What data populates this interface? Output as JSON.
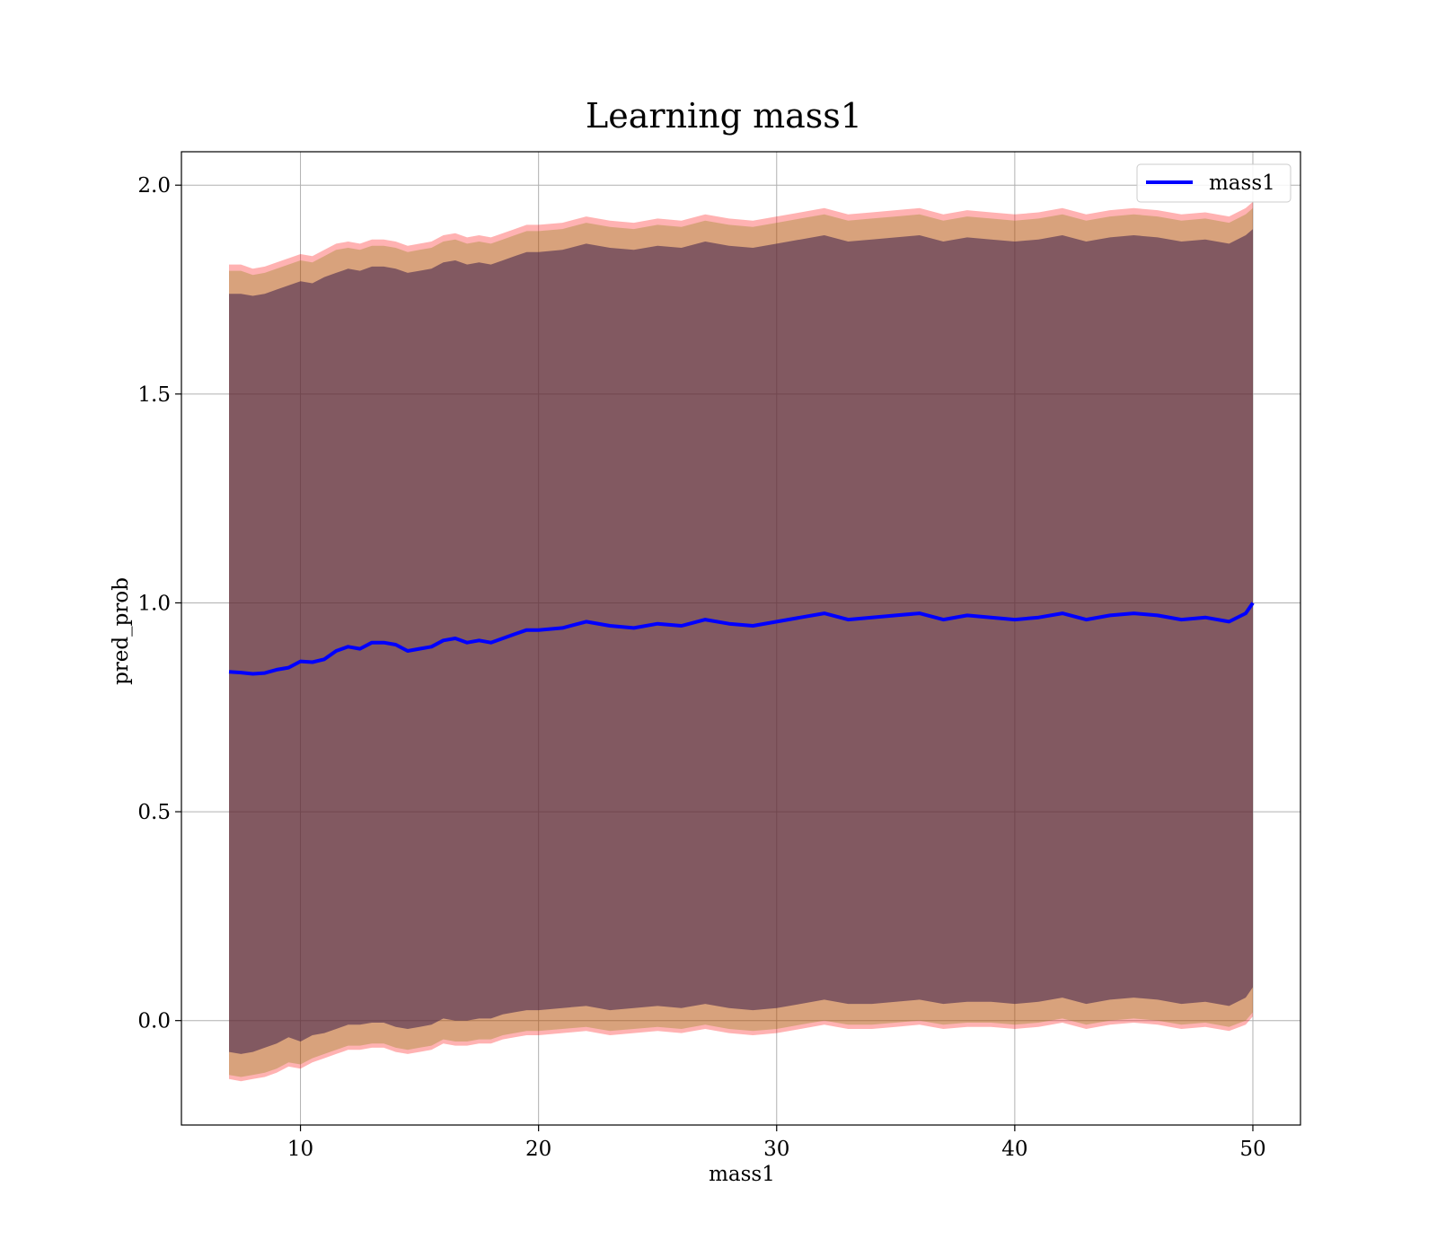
{
  "chart_data": {
    "type": "line",
    "title": "Learning mass1",
    "xlabel": "mass1",
    "ylabel": "pred_prob",
    "xlim": [
      5,
      52
    ],
    "ylim": [
      -0.25,
      2.08
    ],
    "x_ticks": [
      10,
      20,
      30,
      40,
      50
    ],
    "x_tick_labels": [
      "10",
      "20",
      "30",
      "40",
      "50"
    ],
    "y_ticks": [
      0.0,
      0.5,
      1.0,
      1.5,
      2.0
    ],
    "y_tick_labels": [
      "0.0",
      "0.5",
      "1.0",
      "1.5",
      "2.0"
    ],
    "grid": true,
    "legend": {
      "position": "upper right",
      "entries": [
        "mass1"
      ]
    },
    "x": [
      7,
      7.5,
      8,
      8.5,
      9,
      9.5,
      10,
      10.5,
      11,
      11.5,
      12,
      12.5,
      13,
      13.5,
      14,
      14.5,
      15,
      15.5,
      16,
      16.5,
      17,
      17.5,
      18,
      18.5,
      19,
      19.5,
      20,
      21,
      22,
      23,
      24,
      25,
      26,
      27,
      28,
      29,
      30,
      31,
      32,
      33,
      34,
      35,
      36,
      37,
      38,
      39,
      40,
      41,
      42,
      43,
      44,
      45,
      46,
      47,
      48,
      49,
      49.7,
      50
    ],
    "series": [
      {
        "name": "mass1",
        "color": "#0000ff",
        "values": [
          0.835,
          0.833,
          0.83,
          0.832,
          0.84,
          0.845,
          0.86,
          0.858,
          0.865,
          0.885,
          0.895,
          0.89,
          0.905,
          0.905,
          0.9,
          0.885,
          0.89,
          0.895,
          0.91,
          0.915,
          0.905,
          0.91,
          0.905,
          0.915,
          0.925,
          0.935,
          0.935,
          0.94,
          0.955,
          0.945,
          0.94,
          0.95,
          0.945,
          0.96,
          0.95,
          0.945,
          0.955,
          0.965,
          0.975,
          0.96,
          0.965,
          0.97,
          0.975,
          0.96,
          0.97,
          0.965,
          0.96,
          0.965,
          0.975,
          0.96,
          0.97,
          0.975,
          0.97,
          0.96,
          0.965,
          0.955,
          0.975,
          1.0
        ]
      }
    ],
    "bands": [
      {
        "color": "#ff0000",
        "opacity": 0.3,
        "lower": [
          -0.14,
          -0.145,
          -0.14,
          -0.135,
          -0.125,
          -0.11,
          -0.115,
          -0.1,
          -0.09,
          -0.08,
          -0.07,
          -0.07,
          -0.065,
          -0.065,
          -0.075,
          -0.08,
          -0.075,
          -0.07,
          -0.055,
          -0.06,
          -0.06,
          -0.055,
          -0.055,
          -0.045,
          -0.04,
          -0.035,
          -0.035,
          -0.03,
          -0.025,
          -0.035,
          -0.03,
          -0.025,
          -0.03,
          -0.02,
          -0.03,
          -0.035,
          -0.03,
          -0.02,
          -0.01,
          -0.02,
          -0.02,
          -0.015,
          -0.01,
          -0.02,
          -0.015,
          -0.015,
          -0.02,
          -0.015,
          -0.005,
          -0.02,
          -0.01,
          -0.005,
          -0.01,
          -0.02,
          -0.015,
          -0.025,
          -0.01,
          0.01
        ],
        "upper": [
          1.81,
          1.81,
          1.8,
          1.805,
          1.815,
          1.825,
          1.835,
          1.83,
          1.845,
          1.86,
          1.865,
          1.86,
          1.87,
          1.87,
          1.865,
          1.855,
          1.86,
          1.865,
          1.88,
          1.885,
          1.875,
          1.88,
          1.875,
          1.885,
          1.895,
          1.905,
          1.905,
          1.91,
          1.925,
          1.915,
          1.91,
          1.92,
          1.915,
          1.93,
          1.92,
          1.915,
          1.925,
          1.935,
          1.945,
          1.93,
          1.935,
          1.94,
          1.945,
          1.93,
          1.94,
          1.935,
          1.93,
          1.935,
          1.945,
          1.93,
          1.94,
          1.945,
          1.94,
          1.93,
          1.935,
          1.925,
          1.945,
          1.96
        ]
      },
      {
        "color": "#7f7f00",
        "opacity": 0.3,
        "lower": [
          -0.13,
          -0.135,
          -0.13,
          -0.125,
          -0.115,
          -0.1,
          -0.105,
          -0.09,
          -0.08,
          -0.07,
          -0.06,
          -0.06,
          -0.055,
          -0.055,
          -0.065,
          -0.07,
          -0.065,
          -0.06,
          -0.045,
          -0.05,
          -0.05,
          -0.045,
          -0.045,
          -0.035,
          -0.03,
          -0.025,
          -0.025,
          -0.02,
          -0.015,
          -0.025,
          -0.02,
          -0.015,
          -0.02,
          -0.01,
          -0.02,
          -0.025,
          -0.02,
          -0.01,
          0.0,
          -0.01,
          -0.01,
          -0.005,
          0.0,
          -0.01,
          -0.005,
          -0.005,
          -0.01,
          -0.005,
          0.005,
          -0.01,
          0.0,
          0.005,
          0.0,
          -0.01,
          -0.005,
          -0.015,
          0.0,
          0.02
        ],
        "upper": [
          1.795,
          1.795,
          1.785,
          1.79,
          1.8,
          1.81,
          1.82,
          1.815,
          1.83,
          1.845,
          1.85,
          1.845,
          1.855,
          1.855,
          1.85,
          1.84,
          1.845,
          1.85,
          1.865,
          1.87,
          1.86,
          1.865,
          1.86,
          1.87,
          1.88,
          1.89,
          1.89,
          1.895,
          1.91,
          1.9,
          1.895,
          1.905,
          1.9,
          1.915,
          1.905,
          1.9,
          1.91,
          1.92,
          1.93,
          1.915,
          1.92,
          1.925,
          1.93,
          1.915,
          1.925,
          1.92,
          1.915,
          1.92,
          1.93,
          1.915,
          1.925,
          1.93,
          1.925,
          1.915,
          1.92,
          1.91,
          1.93,
          1.945
        ]
      },
      {
        "color": "#3c1e4b",
        "opacity": 0.55,
        "lower": [
          -0.075,
          -0.08,
          -0.075,
          -0.065,
          -0.055,
          -0.04,
          -0.05,
          -0.035,
          -0.03,
          -0.02,
          -0.01,
          -0.01,
          -0.005,
          -0.005,
          -0.015,
          -0.02,
          -0.015,
          -0.01,
          0.005,
          0.0,
          0.0,
          0.005,
          0.005,
          0.015,
          0.02,
          0.025,
          0.025,
          0.03,
          0.035,
          0.025,
          0.03,
          0.035,
          0.03,
          0.04,
          0.03,
          0.025,
          0.03,
          0.04,
          0.05,
          0.04,
          0.04,
          0.045,
          0.05,
          0.04,
          0.045,
          0.045,
          0.04,
          0.045,
          0.055,
          0.04,
          0.05,
          0.055,
          0.05,
          0.04,
          0.045,
          0.035,
          0.055,
          0.08
        ],
        "upper": [
          1.74,
          1.74,
          1.735,
          1.74,
          1.75,
          1.76,
          1.77,
          1.765,
          1.78,
          1.79,
          1.8,
          1.795,
          1.805,
          1.805,
          1.8,
          1.79,
          1.795,
          1.8,
          1.815,
          1.82,
          1.81,
          1.815,
          1.81,
          1.82,
          1.83,
          1.84,
          1.84,
          1.845,
          1.86,
          1.85,
          1.845,
          1.855,
          1.85,
          1.865,
          1.855,
          1.85,
          1.86,
          1.87,
          1.88,
          1.865,
          1.87,
          1.875,
          1.88,
          1.865,
          1.875,
          1.87,
          1.865,
          1.87,
          1.88,
          1.865,
          1.875,
          1.88,
          1.875,
          1.865,
          1.87,
          1.86,
          1.88,
          1.895
        ]
      }
    ]
  }
}
